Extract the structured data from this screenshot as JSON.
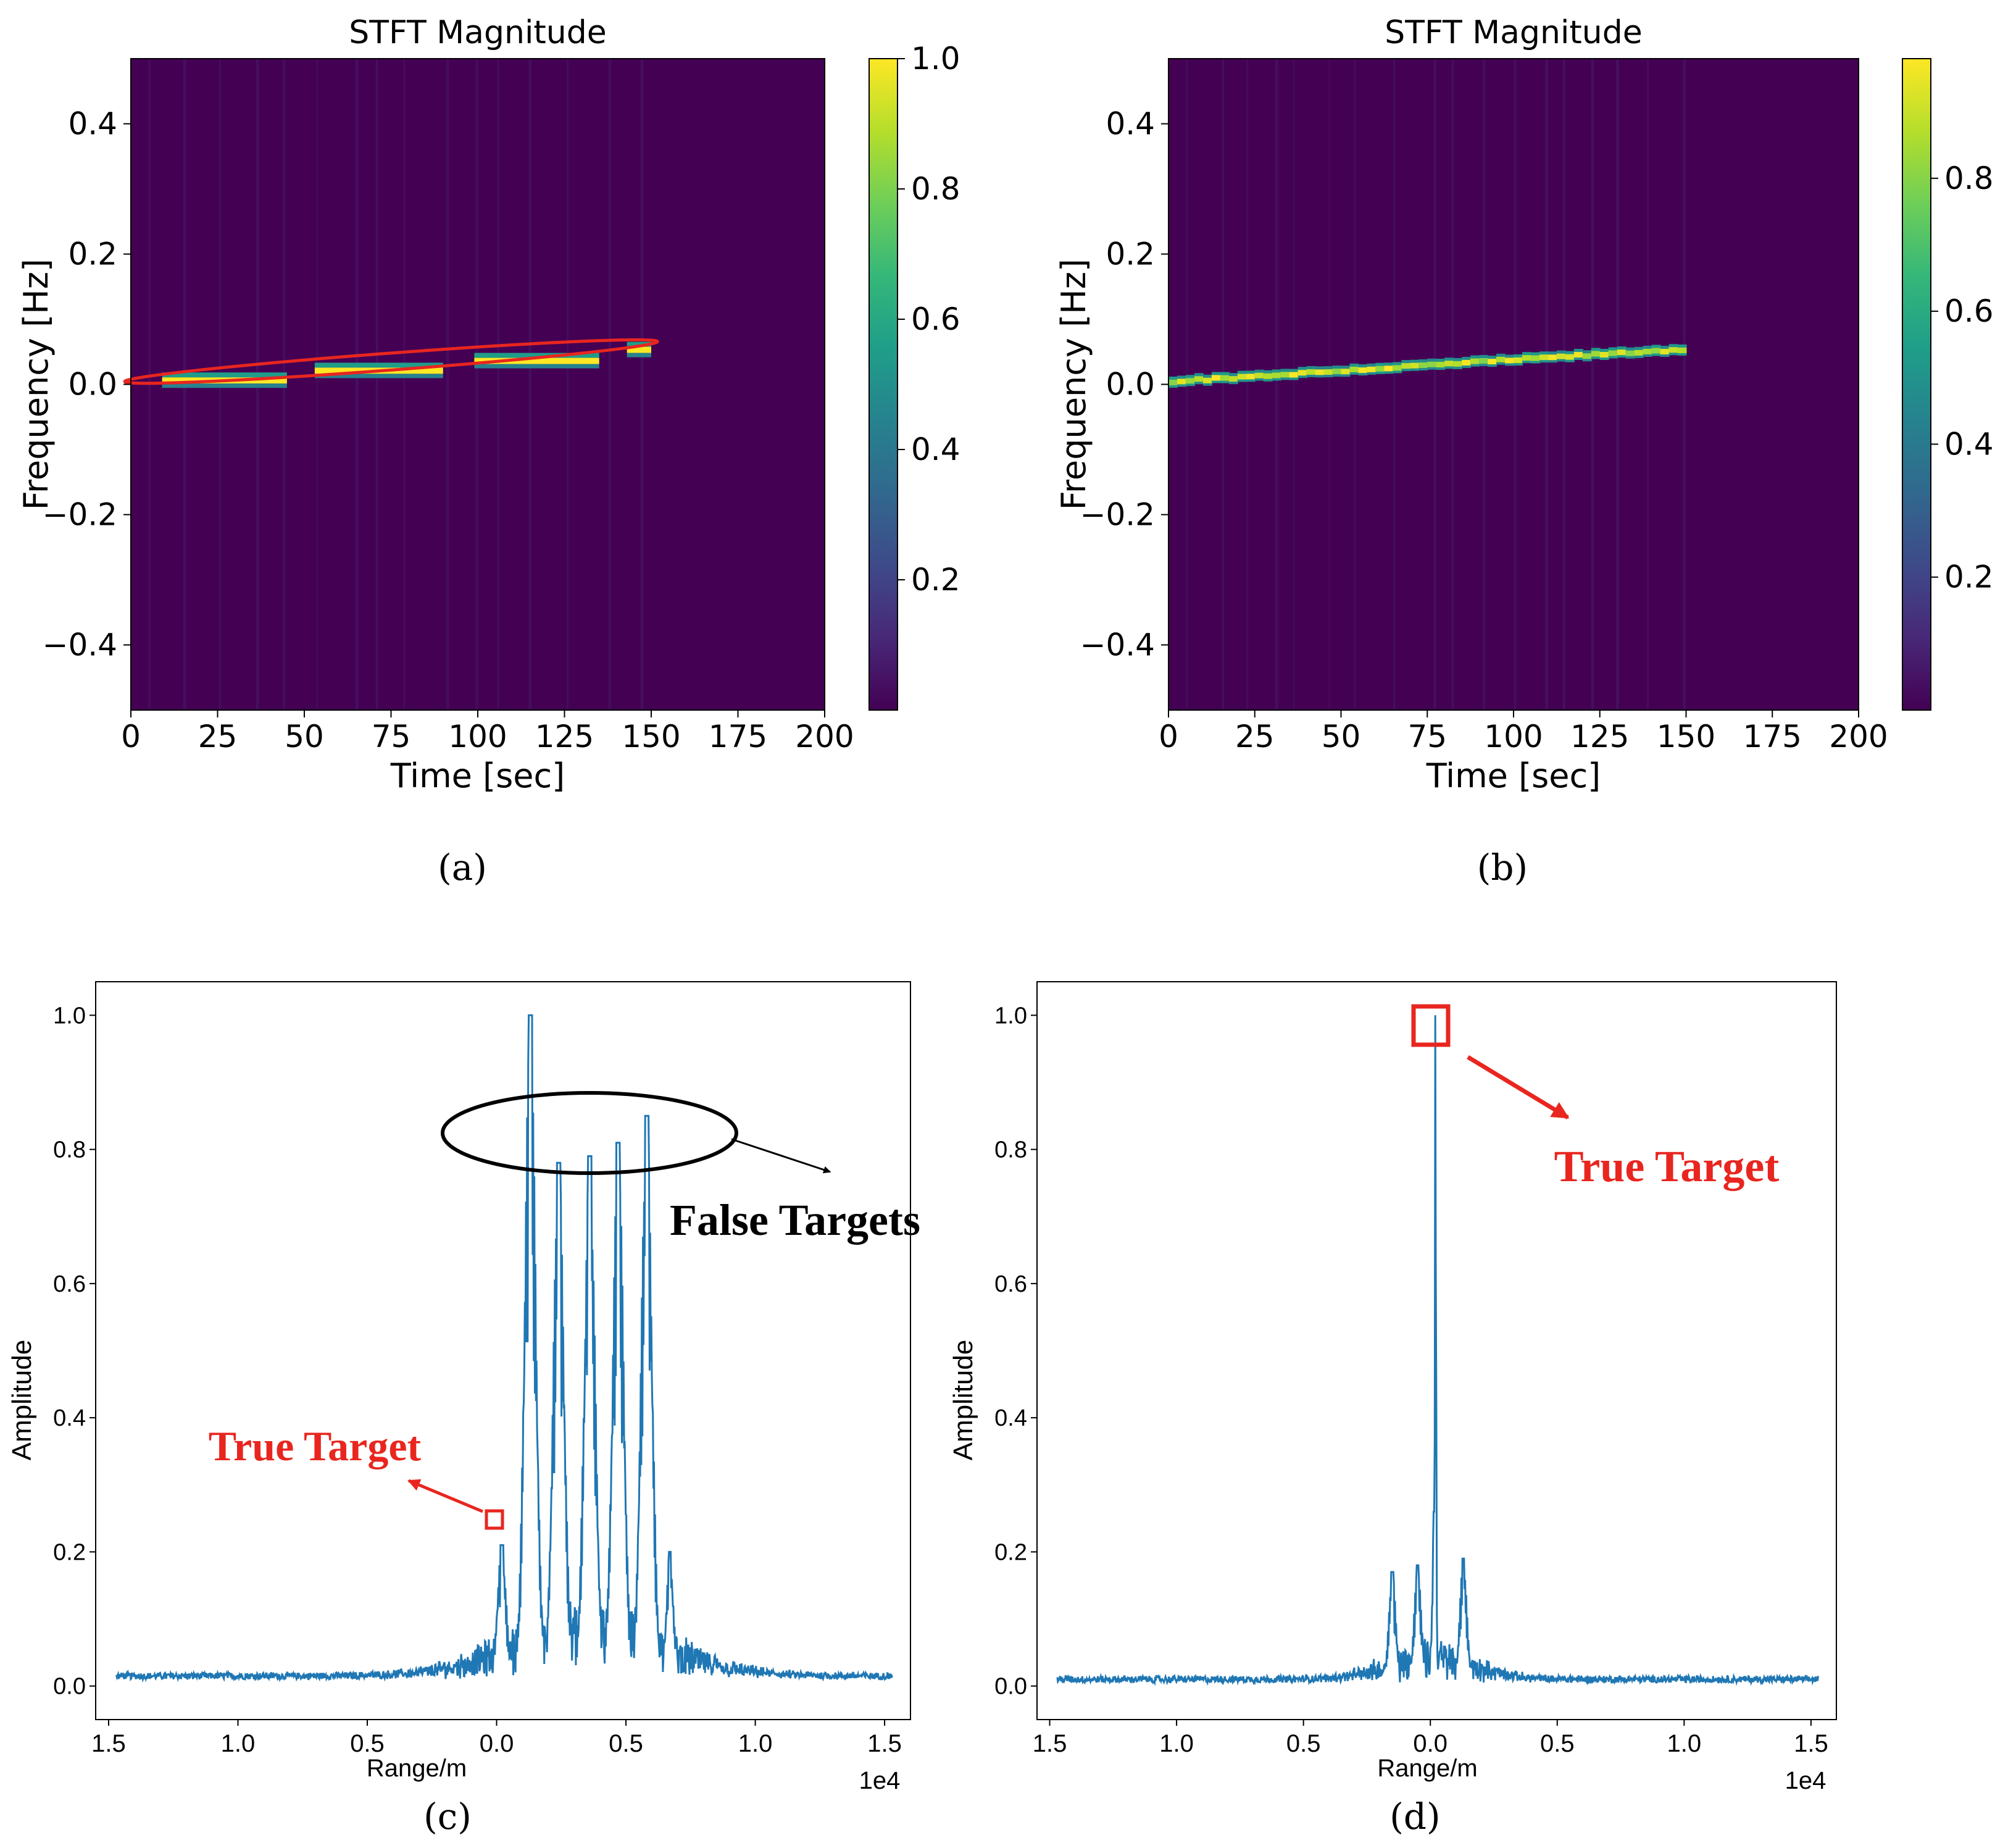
{
  "chart_data": [
    {
      "id": "a",
      "type": "heatmap",
      "panel_label": "(a)",
      "title": "STFT Magnitude",
      "xlabel": "Time [sec]",
      "ylabel": "Frequency [Hz]",
      "xlim": [
        0,
        200
      ],
      "ylim": [
        -0.5,
        0.5
      ],
      "xticks": [
        0,
        25,
        50,
        75,
        100,
        125,
        150,
        175,
        200
      ],
      "yticks": [
        -0.4,
        -0.2,
        0.0,
        0.2,
        0.4
      ],
      "colorbar": {
        "min": 0.0,
        "max": 1.0,
        "ticks": [
          0.2,
          0.4,
          0.6,
          0.8,
          1.0
        ],
        "tick_labels": [
          "0.2",
          "0.4",
          "0.6",
          "0.8",
          "1.0"
        ]
      },
      "background_color": "#440154",
      "segments": [
        {
          "t_start": 9,
          "t_end": 45,
          "freq": 0.005
        },
        {
          "t_start": 53,
          "t_end": 90,
          "freq": 0.02
        },
        {
          "t_start": 99,
          "t_end": 135,
          "freq": 0.035
        },
        {
          "t_start": 143,
          "t_end": 150,
          "freq": 0.052
        }
      ],
      "highlight_ellipse": {
        "t_center": 75,
        "f_center": 0.035,
        "t_radius": 77,
        "f_radius": 0.013,
        "slope_hz_per_sec": 0.0004,
        "color": "#e8261f"
      }
    },
    {
      "id": "b",
      "type": "heatmap",
      "panel_label": "(b)",
      "title": "STFT Magnitude",
      "xlabel": "Time [sec]",
      "ylabel": "Frequency [Hz]",
      "xlim": [
        0,
        200
      ],
      "ylim": [
        -0.5,
        0.5
      ],
      "xticks": [
        0,
        25,
        50,
        75,
        100,
        125,
        150,
        175,
        200
      ],
      "yticks": [
        -0.4,
        -0.2,
        0.0,
        0.2,
        0.4
      ],
      "colorbar": {
        "min": 0.0,
        "max": 0.98,
        "ticks": [
          0.2,
          0.4,
          0.6,
          0.8
        ],
        "tick_labels": [
          "0.2",
          "0.4",
          "0.6",
          "0.8"
        ]
      },
      "background_color": "#440154",
      "chirp_line": {
        "t_start": 0,
        "t_end": 150,
        "f_start": 0.005,
        "f_end": 0.055
      }
    },
    {
      "id": "c",
      "type": "line",
      "panel_label": "(c)",
      "xlabel": "Range/m",
      "ylabel": "Amplitude",
      "x_offset_label": "1e4",
      "xlim": [
        1.5,
        1.55
      ],
      "ylim": [
        -0.05,
        1.05
      ],
      "xtick_labels": [
        "1.5",
        "1.0",
        "0.5",
        "0.0",
        "0.5",
        "1.0",
        "1.5"
      ],
      "xtick_positions": [
        -1.5,
        -1.0,
        -0.5,
        0.0,
        0.5,
        1.0,
        1.5
      ],
      "ytick_labels": [
        "0.0",
        "0.2",
        "0.4",
        "0.6",
        "0.8",
        "1.0"
      ],
      "yticks": [
        0.0,
        0.2,
        0.4,
        0.6,
        0.8,
        1.0
      ],
      "line_color": "#1f77b4",
      "noise_floor": 0.01,
      "peaks": [
        {
          "x": 0.02,
          "y": 0.21,
          "width": 0.05
        },
        {
          "x": 0.13,
          "y": 1.0,
          "width": 0.06
        },
        {
          "x": 0.24,
          "y": 0.78,
          "width": 0.06
        },
        {
          "x": 0.36,
          "y": 0.79,
          "width": 0.06
        },
        {
          "x": 0.47,
          "y": 0.81,
          "width": 0.06
        },
        {
          "x": 0.58,
          "y": 0.85,
          "width": 0.06
        },
        {
          "x": 0.67,
          "y": 0.2,
          "width": 0.04
        }
      ],
      "annotations": {
        "false_targets": "False Targets",
        "true_target": "True Target"
      }
    },
    {
      "id": "d",
      "type": "line",
      "panel_label": "(d)",
      "xlabel": "Range/m",
      "ylabel": "Amplitude",
      "x_offset_label": "1e4",
      "xtick_labels": [
        "1.5",
        "1.0",
        "0.5",
        "0.0",
        "0.5",
        "1.0",
        "1.5"
      ],
      "xtick_positions": [
        -1.5,
        -1.0,
        -0.5,
        0.0,
        0.5,
        1.0,
        1.5
      ],
      "ytick_labels": [
        "0.0",
        "0.2",
        "0.4",
        "0.6",
        "0.8",
        "1.0"
      ],
      "yticks": [
        0.0,
        0.2,
        0.4,
        0.6,
        0.8,
        1.0
      ],
      "line_color": "#1f77b4",
      "noise_floor": 0.005,
      "peaks": [
        {
          "x": 0.02,
          "y": 1.0,
          "width": 0.008
        },
        {
          "x": 0.015,
          "y": 0.26,
          "width": 0.02
        },
        {
          "x": -0.15,
          "y": 0.17,
          "width": 0.04
        },
        {
          "x": -0.05,
          "y": 0.18,
          "width": 0.04
        },
        {
          "x": 0.13,
          "y": 0.19,
          "width": 0.04
        }
      ],
      "annotations": {
        "true_target": "True Target"
      }
    }
  ]
}
